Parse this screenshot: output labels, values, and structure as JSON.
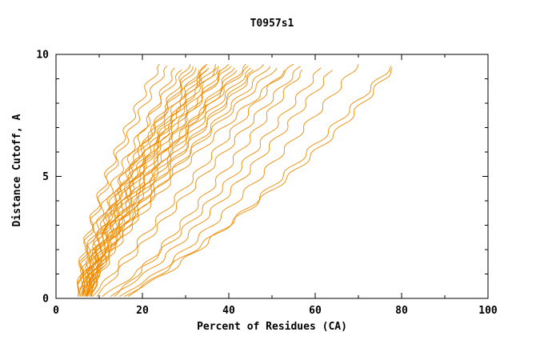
{
  "chart_data": {
    "type": "line",
    "title": "T0957s1",
    "xlabel": "Percent of Residues (CA)",
    "ylabel": "Distance Cutoff, A",
    "xlim": [
      0,
      100
    ],
    "ylim": [
      0,
      10
    ],
    "x_ticks_major": [
      0,
      20,
      40,
      60,
      80,
      100
    ],
    "x_tick_minor_step": 10,
    "y_ticks_major": [
      0,
      5,
      10
    ],
    "y_tick_minor_step": 1,
    "legend": "none",
    "grid": false,
    "line_color": "#ef8b00",
    "frame_color": "#000000",
    "background": "#ffffff",
    "y_levels": [
      0,
      1,
      2,
      3,
      4,
      5,
      6,
      7,
      8,
      9,
      9.6
    ],
    "series_note": "Each series is the x-value (percent of residues) at each y_level distance cutoff; one curve per predicted model",
    "series": [
      [
        5,
        5.5,
        6.5,
        8,
        9.7,
        11.7,
        14,
        16.5,
        19.2,
        22.1,
        24
      ],
      [
        5,
        5.6,
        6.7,
        8.3,
        10.2,
        12.4,
        14.9,
        17.7,
        20.7,
        23.9,
        26
      ],
      [
        6,
        7.1,
        8.9,
        10.9,
        13.1,
        15.4,
        17.9,
        20.6,
        23.4,
        26.2,
        28
      ],
      [
        5.5,
        6.2,
        7.5,
        9.3,
        11.6,
        14.1,
        17.1,
        20.3,
        23.8,
        27.6,
        30
      ],
      [
        6,
        7.3,
        9.3,
        11.5,
        14,
        16.7,
        19.6,
        22.6,
        25.7,
        29,
        31
      ],
      [
        5,
        6.4,
        8.5,
        11,
        13.7,
        16.6,
        19.6,
        22.9,
        26.3,
        29.8,
        32
      ],
      [
        7,
        7.7,
        9.1,
        11.1,
        13.4,
        16.2,
        19.3,
        22.7,
        26.4,
        30.5,
        33
      ],
      [
        6,
        7.5,
        9.6,
        12.2,
        15,
        18,
        21.2,
        24.6,
        28.1,
        31.7,
        34
      ],
      [
        5,
        5.8,
        7.4,
        9.7,
        12.4,
        15.6,
        19.2,
        23.1,
        27.4,
        32.1,
        35
      ],
      [
        7,
        8.5,
        10.6,
        13.2,
        16,
        19,
        22.2,
        25.6,
        29.1,
        32.7,
        35
      ],
      [
        6,
        7.6,
        9.9,
        12.6,
        15.6,
        18.8,
        22.3,
        25.9,
        29.7,
        33.6,
        36
      ],
      [
        8,
        8.8,
        10.3,
        12.4,
        14.9,
        17.9,
        21.2,
        24.9,
        28.9,
        33.3,
        36
      ],
      [
        5.5,
        7.1,
        9.6,
        12.5,
        15.6,
        19,
        22.6,
        26.4,
        30.4,
        34.4,
        37
      ],
      [
        7,
        8.6,
        11,
        13.9,
        17,
        20.3,
        23.8,
        27.6,
        31.5,
        35.5,
        38
      ],
      [
        6,
        6.9,
        8.6,
        11,
        13.9,
        17.3,
        21.1,
        25.3,
        29.9,
        34.9,
        38
      ],
      [
        8,
        9.6,
        12,
        14.9,
        18,
        21.3,
        24.8,
        28.6,
        32.5,
        36.5,
        39
      ],
      [
        6.5,
        8.2,
        10.9,
        13.9,
        17.3,
        20.8,
        24.7,
        28.7,
        32.9,
        37.3,
        40
      ],
      [
        7,
        7.9,
        9.8,
        12.3,
        15.4,
        19,
        23,
        27.5,
        32.4,
        37.7,
        41
      ],
      [
        8,
        9.8,
        12.4,
        15.5,
        18.9,
        22.6,
        26.4,
        30.5,
        34.8,
        39.2,
        42
      ],
      [
        6,
        7.9,
        10.8,
        14.2,
        17.9,
        21.8,
        26.1,
        30.5,
        35.2,
        40,
        43
      ],
      [
        7,
        8.9,
        11.8,
        15.2,
        18.9,
        22.8,
        27.1,
        31.5,
        36.2,
        41,
        44
      ],
      [
        8,
        9,
        11,
        13.8,
        17.1,
        21,
        25.5,
        30.3,
        35.6,
        41.4,
        45
      ],
      [
        6,
        8.1,
        11.2,
        14.8,
        18.8,
        23.1,
        27.7,
        32.5,
        37.6,
        42.8,
        46
      ],
      [
        7.5,
        9.6,
        12.6,
        16.2,
        20.2,
        24.4,
        28.9,
        33.7,
        38.7,
        43.8,
        47
      ],
      [
        7,
        9.1,
        12.3,
        16.1,
        20.2,
        24.5,
        29.2,
        34.2,
        39.4,
        44.7,
        48
      ],
      [
        8,
        10.2,
        13.5,
        17.3,
        21.5,
        26,
        30.8,
        35.8,
        41.1,
        46.6,
        50
      ],
      [
        6.5,
        8.9,
        12.4,
        16.5,
        21.1,
        26,
        31.2,
        36.7,
        42.4,
        48.3,
        52
      ],
      [
        8,
        12.8,
        17.6,
        22.4,
        27.2,
        32,
        36.8,
        41.5,
        46.3,
        51.1,
        54
      ],
      [
        7,
        9.5,
        13.2,
        17.6,
        22.4,
        27.5,
        33,
        38.8,
        44.9,
        51.1,
        55
      ],
      [
        9,
        14,
        19,
        24,
        29,
        34,
        39,
        44,
        49,
        54,
        57
      ],
      [
        10,
        18.5,
        24.8,
        30.5,
        35.8,
        40.9,
        45.7,
        50.4,
        54.9,
        59.4,
        62
      ],
      [
        12,
        20.7,
        27.1,
        32.9,
        38.3,
        43.5,
        48.4,
        53.2,
        57.8,
        62.4,
        65
      ],
      [
        14,
        23.2,
        30,
        36.1,
        41.8,
        47.3,
        52.5,
        57.5,
        62.4,
        67.2,
        70
      ],
      [
        15,
        25.3,
        33,
        39.8,
        46.3,
        52.4,
        58.3,
        64,
        69.4,
        74.9,
        78
      ],
      [
        16,
        24,
        32,
        40,
        47,
        54,
        60,
        66,
        71,
        76,
        78.5
      ],
      [
        13,
        18.9,
        24,
        28.8,
        33.5,
        38,
        42.5,
        46.8,
        51.1,
        55.4,
        58
      ]
    ]
  }
}
